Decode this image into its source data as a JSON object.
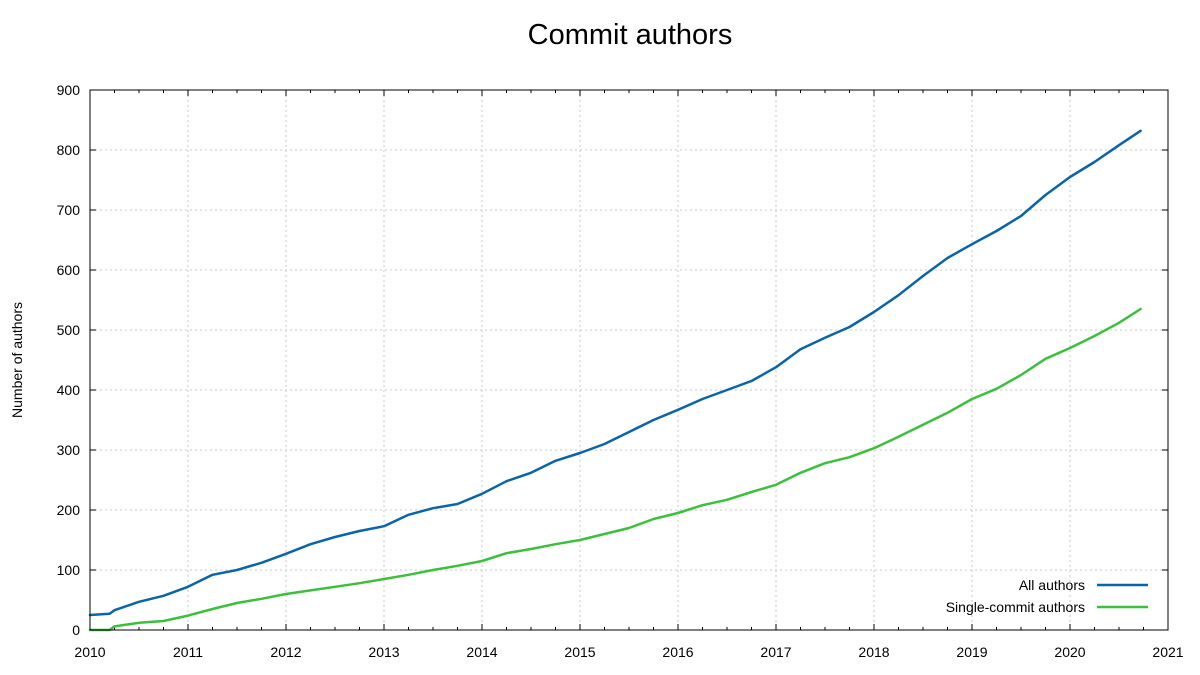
{
  "chart_data": {
    "type": "line",
    "title": "Commit authors",
    "xlabel": "",
    "ylabel": "Number of authors",
    "xlim": [
      2010,
      2021
    ],
    "ylim": [
      0,
      900
    ],
    "xticks": [
      "2010",
      "2011",
      "2012",
      "2013",
      "2014",
      "2015",
      "2016",
      "2017",
      "2018",
      "2019",
      "2020",
      "2021"
    ],
    "yticks": [
      "0",
      "100",
      "200",
      "300",
      "400",
      "500",
      "600",
      "700",
      "800",
      "900"
    ],
    "grid": true,
    "legend_position": "bottom-right",
    "series": [
      {
        "name": "All authors",
        "color": "#0a64aa",
        "x": [
          2010.0,
          2010.2,
          2010.25,
          2010.5,
          2010.75,
          2011.0,
          2011.25,
          2011.5,
          2011.75,
          2012.0,
          2012.25,
          2012.5,
          2012.75,
          2013.0,
          2013.25,
          2013.5,
          2013.75,
          2014.0,
          2014.25,
          2014.5,
          2014.75,
          2015.0,
          2015.25,
          2015.5,
          2015.75,
          2016.0,
          2016.25,
          2016.5,
          2016.75,
          2017.0,
          2017.25,
          2017.5,
          2017.75,
          2018.0,
          2018.25,
          2018.5,
          2018.75,
          2019.0,
          2019.25,
          2019.5,
          2019.75,
          2020.0,
          2020.25,
          2020.5,
          2020.72
        ],
        "values": [
          25,
          27,
          33,
          47,
          57,
          72,
          92,
          100,
          112,
          127,
          143,
          155,
          165,
          173,
          192,
          203,
          210,
          227,
          248,
          262,
          282,
          295,
          310,
          330,
          350,
          367,
          385,
          400,
          415,
          438,
          468,
          487,
          505,
          530,
          558,
          590,
          620,
          643,
          665,
          690,
          725,
          755,
          780,
          808,
          832
        ]
      },
      {
        "name": "Single-commit authors",
        "color": "#3cc03c",
        "x": [
          2010.0,
          2010.2,
          2010.25,
          2010.5,
          2010.75,
          2011.0,
          2011.25,
          2011.5,
          2011.75,
          2012.0,
          2012.25,
          2012.5,
          2012.75,
          2013.0,
          2013.25,
          2013.5,
          2013.75,
          2014.0,
          2014.25,
          2014.5,
          2014.75,
          2015.0,
          2015.25,
          2015.5,
          2015.75,
          2016.0,
          2016.25,
          2016.5,
          2016.75,
          2017.0,
          2017.25,
          2017.5,
          2017.75,
          2018.0,
          2018.25,
          2018.5,
          2018.75,
          2019.0,
          2019.25,
          2019.5,
          2019.75,
          2020.0,
          2020.25,
          2020.5,
          2020.72
        ],
        "values": [
          0,
          0,
          6,
          12,
          15,
          24,
          35,
          45,
          52,
          60,
          66,
          72,
          78,
          85,
          92,
          100,
          107,
          115,
          128,
          135,
          143,
          150,
          160,
          170,
          185,
          195,
          208,
          217,
          230,
          242,
          262,
          278,
          288,
          303,
          322,
          342,
          362,
          385,
          402,
          425,
          452,
          470,
          490,
          512,
          535
        ]
      }
    ]
  }
}
